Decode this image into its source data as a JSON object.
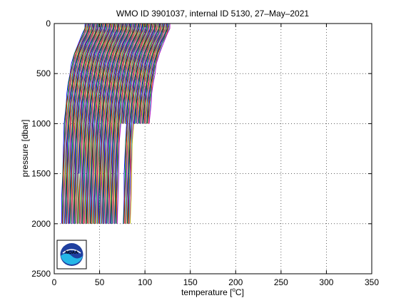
{
  "chart_data": {
    "type": "line",
    "title": "WMO ID 3901037, internal ID 5130, 27–May–2021",
    "xlabel_prefix": "temperature [",
    "xlabel_sup": "o",
    "xlabel_suffix": "C]",
    "ylabel": "pressure [dbar]",
    "xlim": [
      0,
      350
    ],
    "ylim": [
      0,
      2500
    ],
    "y_reversed": true,
    "grid": true,
    "grid_style": "dotted",
    "x_ticks": [
      0,
      50,
      100,
      150,
      200,
      250,
      300,
      350
    ],
    "y_ticks": [
      0,
      500,
      1000,
      1500,
      2000,
      2500
    ],
    "line_colors": [
      "#0000ff",
      "#008000",
      "#ff0000",
      "#00bfbf",
      "#bf00bf",
      "#bfbf00",
      "#404040"
    ],
    "series_note_profiles": 145,
    "profile_offset_start": 8,
    "profile_offset_step": 0.65,
    "profile_shape": {
      "pressure": [
        0,
        50,
        100,
        200,
        300,
        400,
        500,
        600,
        700,
        800,
        1000,
        1200,
        1500,
        1750,
        2000
      ],
      "temperature_relative": [
        26,
        25.5,
        23.5,
        18.5,
        14.2,
        11.3,
        9.2,
        7.5,
        6.1,
        4.9,
        3.3,
        2.2,
        1.2,
        0.5,
        0
      ]
    },
    "logo_label": "NOAA"
  }
}
